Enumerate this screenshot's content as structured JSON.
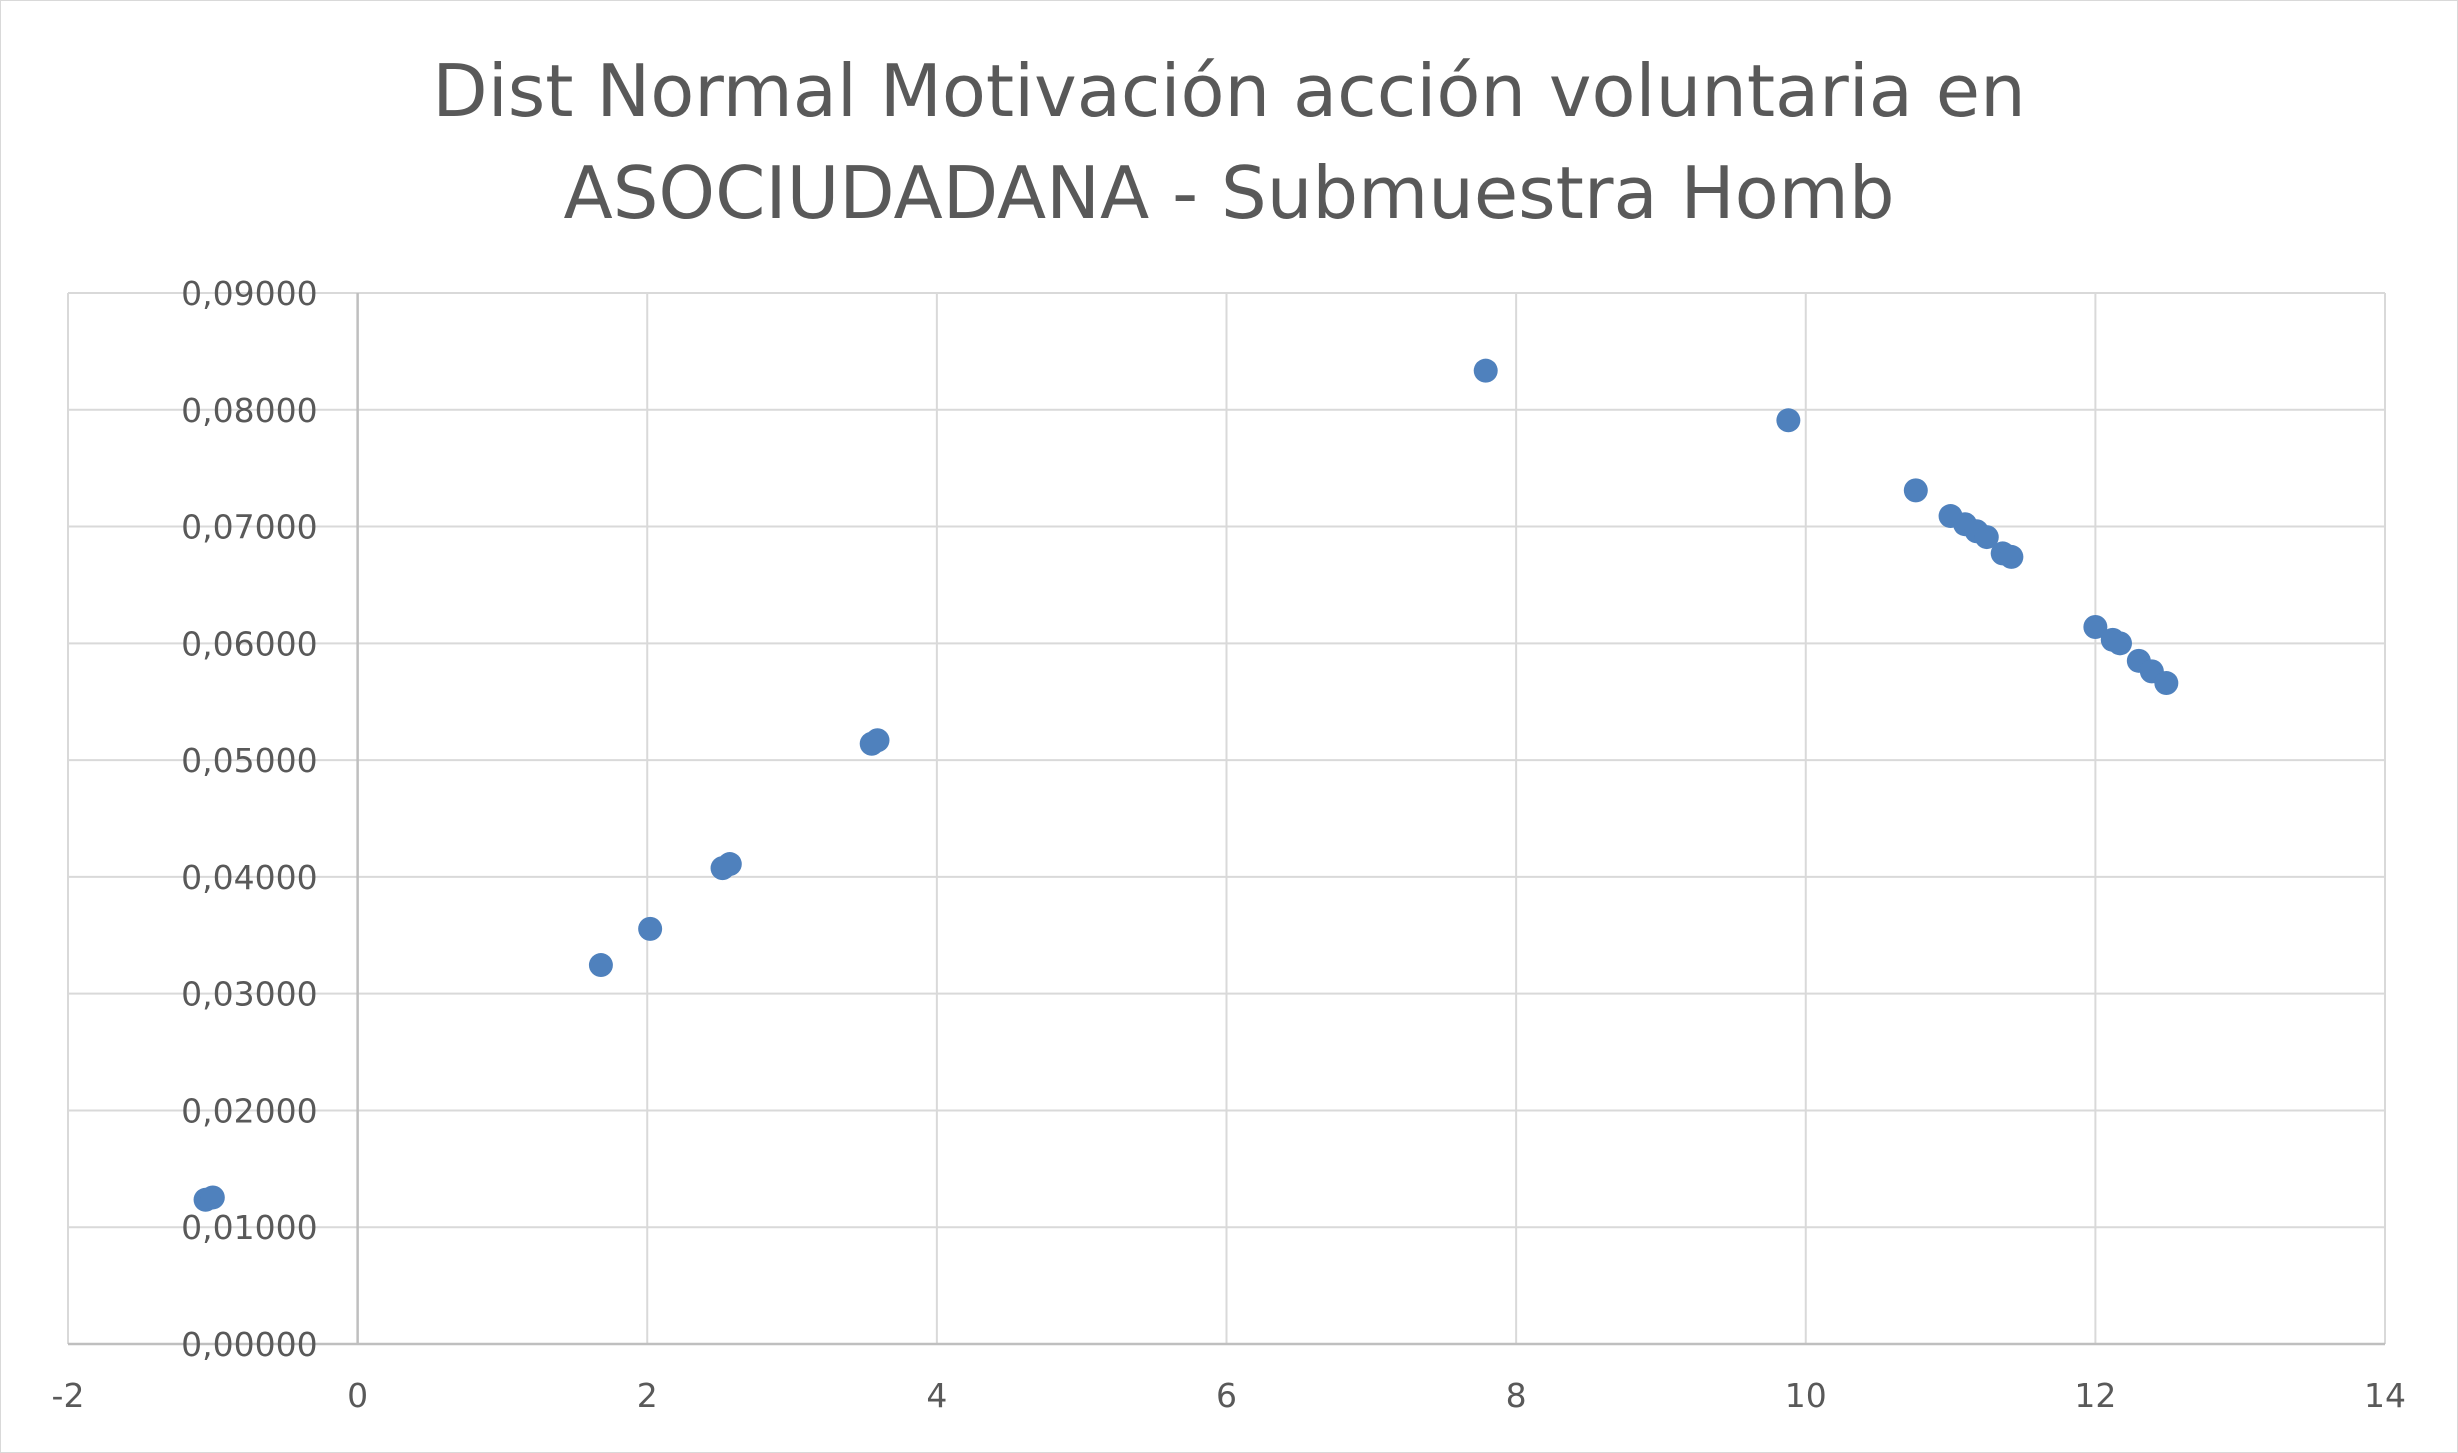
{
  "chart_data": {
    "type": "scatter",
    "title_lines": [
      "Dist Normal Motivación acción voluntaria en",
      "ASOCIUDADANA - Submuestra Homb"
    ],
    "xlim": [
      -2,
      14
    ],
    "ylim": [
      0,
      0.09
    ],
    "x_ticks": [
      -2,
      0,
      2,
      4,
      6,
      8,
      10,
      12,
      14
    ],
    "x_tick_labels": [
      "-2",
      "0",
      "2",
      "4",
      "6",
      "8",
      "10",
      "12",
      "14"
    ],
    "y_ticks": [
      0,
      0.01,
      0.02,
      0.03,
      0.04,
      0.05,
      0.06,
      0.07,
      0.08,
      0.09
    ],
    "y_tick_labels": [
      "0,00000",
      "0,01000",
      "0,02000",
      "0,03000",
      "0,04000",
      "0,05000",
      "0,06000",
      "0,07000",
      "0,08000",
      "0,09000"
    ],
    "grid": true,
    "marker_color": "#4f81bd",
    "series": [
      {
        "x": [
          -1.05,
          -1.0,
          1.68,
          2.02,
          2.52,
          2.57,
          3.55,
          3.59,
          7.79,
          9.88,
          10.76,
          11.0,
          11.1,
          11.18,
          11.25,
          11.36,
          11.42,
          12.0,
          12.12,
          12.17,
          12.3,
          12.39,
          12.49
        ],
        "y": [
          0.01235,
          0.01255,
          0.03245,
          0.03555,
          0.04075,
          0.0411,
          0.0514,
          0.0517,
          0.08335,
          0.0791,
          0.0731,
          0.0709,
          0.0702,
          0.0696,
          0.0691,
          0.0677,
          0.0674,
          0.0614,
          0.0603,
          0.06,
          0.0585,
          0.0576,
          0.0566
        ]
      }
    ]
  }
}
